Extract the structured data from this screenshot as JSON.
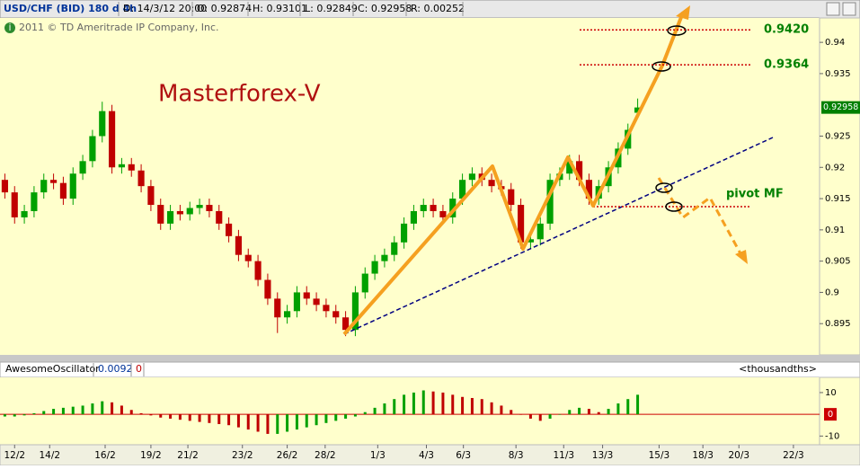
{
  "header": {
    "symbol": "USD/CHF (BID) 180 d 4h",
    "date": "D: 14/3/12 20:00",
    "open": "O: 0.92874",
    "high": "H: 0.93101",
    "low": "L: 0.92849",
    "close": "C: 0.92958",
    "range": "R: 0.00252"
  },
  "copyright": "2011 © TD Ameritrade IP Company, Inc.",
  "chart_data": [
    {
      "type": "candlestick",
      "title": "Masterforex-V",
      "open": [
        0.918,
        0.916,
        0.912,
        0.913,
        0.916,
        0.918,
        0.9175,
        0.915,
        0.919,
        0.921,
        0.925,
        0.929,
        0.92,
        0.9205,
        0.9195,
        0.917,
        0.914,
        0.911,
        0.913,
        0.9125,
        0.9135,
        0.914,
        0.913,
        0.911,
        0.909,
        0.906,
        0.905,
        0.902,
        0.899,
        0.896,
        0.897,
        0.9,
        0.899,
        0.898,
        0.897,
        0.896,
        0.894,
        0.9,
        0.903,
        0.905,
        0.906,
        0.908,
        0.911,
        0.913,
        0.914,
        0.913,
        0.912,
        0.915,
        0.918,
        0.919,
        0.918,
        0.917,
        0.9165,
        0.914,
        0.908,
        0.9085,
        0.911,
        0.918,
        0.919,
        0.921,
        0.918,
        0.915,
        0.917,
        0.92,
        0.923,
        0.92874
      ],
      "high": [
        0.919,
        0.917,
        0.914,
        0.917,
        0.919,
        0.919,
        0.9185,
        0.92,
        0.922,
        0.926,
        0.9305,
        0.93,
        0.9215,
        0.9215,
        0.9205,
        0.918,
        0.915,
        0.914,
        0.914,
        0.9145,
        0.915,
        0.915,
        0.914,
        0.912,
        0.91,
        0.907,
        0.906,
        0.903,
        0.9,
        0.898,
        0.901,
        0.901,
        0.9,
        0.899,
        0.898,
        0.897,
        0.901,
        0.904,
        0.906,
        0.907,
        0.909,
        0.912,
        0.914,
        0.915,
        0.915,
        0.914,
        0.916,
        0.919,
        0.92,
        0.92,
        0.919,
        0.918,
        0.9175,
        0.915,
        0.9095,
        0.912,
        0.919,
        0.92,
        0.922,
        0.922,
        0.919,
        0.918,
        0.921,
        0.924,
        0.927,
        0.93101
      ],
      "low": [
        0.915,
        0.911,
        0.911,
        0.912,
        0.915,
        0.9165,
        0.914,
        0.914,
        0.918,
        0.92,
        0.924,
        0.919,
        0.919,
        0.9185,
        0.916,
        0.913,
        0.91,
        0.91,
        0.9115,
        0.9115,
        0.9125,
        0.912,
        0.91,
        0.908,
        0.905,
        0.904,
        0.901,
        0.898,
        0.8935,
        0.895,
        0.896,
        0.898,
        0.897,
        0.896,
        0.895,
        0.893,
        0.893,
        0.899,
        0.902,
        0.904,
        0.905,
        0.907,
        0.91,
        0.912,
        0.912,
        0.911,
        0.911,
        0.914,
        0.917,
        0.917,
        0.916,
        0.9155,
        0.913,
        0.907,
        0.907,
        0.9075,
        0.91,
        0.917,
        0.918,
        0.917,
        0.914,
        0.914,
        0.916,
        0.919,
        0.922,
        0.92849
      ],
      "close": [
        0.916,
        0.912,
        0.913,
        0.916,
        0.918,
        0.9175,
        0.915,
        0.919,
        0.921,
        0.925,
        0.929,
        0.92,
        0.9205,
        0.9195,
        0.917,
        0.914,
        0.911,
        0.913,
        0.9125,
        0.9135,
        0.914,
        0.913,
        0.911,
        0.909,
        0.906,
        0.905,
        0.902,
        0.899,
        0.896,
        0.897,
        0.9,
        0.899,
        0.898,
        0.897,
        0.896,
        0.894,
        0.9,
        0.903,
        0.905,
        0.906,
        0.908,
        0.911,
        0.913,
        0.914,
        0.913,
        0.912,
        0.915,
        0.918,
        0.919,
        0.918,
        0.917,
        0.9165,
        0.914,
        0.908,
        0.9085,
        0.911,
        0.918,
        0.919,
        0.921,
        0.918,
        0.915,
        0.917,
        0.92,
        0.923,
        0.926,
        0.92958
      ],
      "up_color": "#00a000",
      "down_color": "#c00000",
      "xlim": [
        -0.5,
        83.5
      ],
      "xticks": [
        {
          "value": 1,
          "label": "12/2"
        },
        {
          "value": 4.6,
          "label": "14/2"
        },
        {
          "value": 10.3,
          "label": "16/2"
        },
        {
          "value": 15,
          "label": "19/2"
        },
        {
          "value": 18.8,
          "label": "21/2"
        },
        {
          "value": 24.4,
          "label": "23/2"
        },
        {
          "value": 29,
          "label": "26/2"
        },
        {
          "value": 32.9,
          "label": "28/2"
        },
        {
          "value": 38.3,
          "label": "1/3"
        },
        {
          "value": 43.3,
          "label": "4/3"
        },
        {
          "value": 47.1,
          "label": "6/3"
        },
        {
          "value": 52.5,
          "label": "8/3"
        },
        {
          "value": 57.4,
          "label": "11/3"
        },
        {
          "value": 61.4,
          "label": "13/3"
        },
        {
          "value": 67.2,
          "label": "15/3"
        },
        {
          "value": 71.7,
          "label": "18/3"
        },
        {
          "value": 75.4,
          "label": "20/3"
        },
        {
          "value": 81,
          "label": "22/3"
        }
      ],
      "ylim": [
        0.89,
        0.9439
      ],
      "yticks": [
        0.94,
        0.935,
        0.925,
        0.92,
        0.915,
        0.91,
        0.905,
        0.9,
        0.895
      ],
      "levels": [
        {
          "value": 0.942,
          "label": "0.9420"
        },
        {
          "value": 0.9364,
          "label": "0.9364"
        }
      ],
      "annotation": "pivot MF",
      "price_tag": {
        "value": 0.92958,
        "label": "0.92958"
      }
    },
    {
      "type": "bar",
      "title": "AwesomeOscillator",
      "value_label": "0.0092",
      "status": "0",
      "unit": "<thousandths>",
      "values": [
        -1,
        -1,
        -0.5,
        0.5,
        1.5,
        2.5,
        3,
        3.5,
        4,
        5,
        6,
        5.5,
        4,
        2,
        0.5,
        -0.5,
        -1.5,
        -2,
        -2.5,
        -3,
        -3.5,
        -4,
        -4.5,
        -5,
        -6,
        -7,
        -8,
        -9,
        -9,
        -8,
        -7,
        -6,
        -5,
        -4,
        -3,
        -2,
        -1,
        1,
        3,
        5,
        7,
        9,
        10,
        11,
        10.5,
        10,
        9,
        8,
        7.5,
        7,
        5.5,
        4,
        2,
        0,
        -2,
        -3,
        -2,
        0,
        2,
        3,
        2.5,
        1,
        2.5,
        5,
        7,
        9
      ],
      "up_color": "#00a000",
      "down_color": "#c00000",
      "ylim": [
        -14,
        17
      ],
      "yticks": [
        10,
        -10
      ],
      "zero_tag": {
        "value": 0,
        "label": "0"
      }
    }
  ]
}
